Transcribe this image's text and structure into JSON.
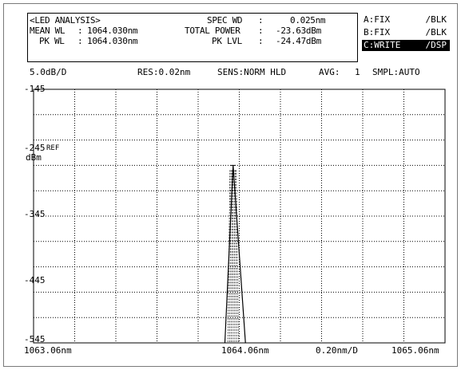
{
  "info": {
    "title": "<LED ANALYSIS>",
    "mean_wl_label": "MEAN WL",
    "mean_wl_value": "1064.030nm",
    "pk_wl_label": "PK WL",
    "pk_wl_value": "1064.030nm",
    "spec_wd_label": "SPEC WD",
    "spec_wd_value": "0.025nm",
    "total_power_label": "TOTAL POWER",
    "total_power_value": "-23.63dBm",
    "pk_lvl_label": "PK LVL",
    "pk_lvl_value": "-24.47dBm"
  },
  "traces": [
    {
      "name": "A:FIX",
      "mode": "/BLK",
      "active": false
    },
    {
      "name": "B:FIX",
      "mode": "/BLK",
      "active": false
    },
    {
      "name": "C:WRITE",
      "mode": "/DSP",
      "active": true
    }
  ],
  "status": {
    "scale": "5.0dB/D",
    "res": "RES:0.02nm",
    "sens": "SENS:NORM HLD",
    "avg_label": "AVG:",
    "avg_value": "1",
    "smpl": "SMPL:AUTO"
  },
  "y_axis": {
    "labels": [
      "-145",
      "-245",
      "-345",
      "-445",
      "-545"
    ],
    "ref_label": "REF",
    "unit": "dBm"
  },
  "x_axis": {
    "start": "1063.06nm",
    "center": "1064.06nm",
    "span_per_div": "0.20nm/D",
    "stop": "1065.06nm"
  },
  "chart_data": {
    "type": "line",
    "x_range_nm": [
      1063.06,
      1065.06
    ],
    "y_divisions": 10,
    "x_divisions": 10,
    "peak_x_nm": 1064.03,
    "peak_y_div": 3.0,
    "base_left_x_nm": 1063.99,
    "base_right_x_nm": 1064.09,
    "grid": true
  },
  "colors": {
    "grid": "#000000",
    "trace": "#000000",
    "active_bg": "#000000"
  }
}
